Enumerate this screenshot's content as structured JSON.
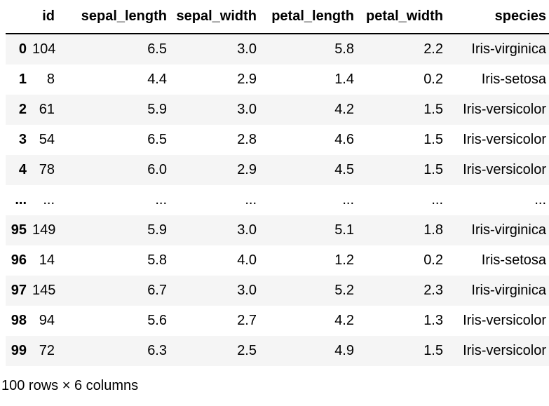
{
  "dataframe": {
    "columns": [
      "id",
      "sepal_length",
      "sepal_width",
      "petal_length",
      "petal_width",
      "species"
    ],
    "index_header": "",
    "rows": [
      {
        "index": "0",
        "cells": [
          "104",
          "6.5",
          "3.0",
          "5.8",
          "2.2",
          "Iris-virginica"
        ]
      },
      {
        "index": "1",
        "cells": [
          "8",
          "4.4",
          "2.9",
          "1.4",
          "0.2",
          "Iris-setosa"
        ]
      },
      {
        "index": "2",
        "cells": [
          "61",
          "5.9",
          "3.0",
          "4.2",
          "1.5",
          "Iris-versicolor"
        ]
      },
      {
        "index": "3",
        "cells": [
          "54",
          "6.5",
          "2.8",
          "4.6",
          "1.5",
          "Iris-versicolor"
        ]
      },
      {
        "index": "4",
        "cells": [
          "78",
          "6.0",
          "2.9",
          "4.5",
          "1.5",
          "Iris-versicolor"
        ]
      },
      {
        "index": "...",
        "cells": [
          "...",
          "...",
          "...",
          "...",
          "...",
          "..."
        ]
      },
      {
        "index": "95",
        "cells": [
          "149",
          "5.9",
          "3.0",
          "5.1",
          "1.8",
          "Iris-virginica"
        ]
      },
      {
        "index": "96",
        "cells": [
          "14",
          "5.8",
          "4.0",
          "1.2",
          "0.2",
          "Iris-setosa"
        ]
      },
      {
        "index": "97",
        "cells": [
          "145",
          "6.7",
          "3.0",
          "5.2",
          "2.3",
          "Iris-virginica"
        ]
      },
      {
        "index": "98",
        "cells": [
          "94",
          "5.6",
          "2.7",
          "4.2",
          "1.3",
          "Iris-versicolor"
        ]
      },
      {
        "index": "99",
        "cells": [
          "72",
          "6.3",
          "2.5",
          "4.9",
          "1.5",
          "Iris-versicolor"
        ]
      }
    ],
    "shape_label": "100 rows × 6 columns",
    "colors": {
      "stripe": "#f5f5f5",
      "header_border": "#000000",
      "text": "#000000",
      "background": "#ffffff"
    }
  }
}
